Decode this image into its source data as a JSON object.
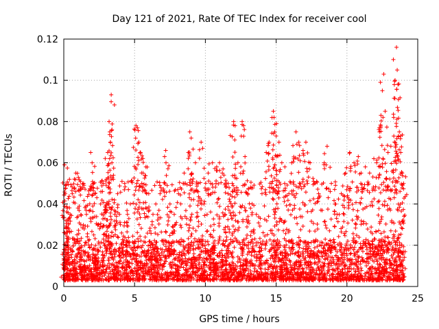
{
  "chart_data": {
    "type": "scatter",
    "title": "Day 121 of 2021, Rate Of TEC Index for receiver cool",
    "xlabel": "GPS time / hours",
    "ylabel": "ROTI / TECUs",
    "xlim": [
      0,
      25
    ],
    "ylim": [
      0,
      0.12
    ],
    "xticks": [
      0,
      5,
      10,
      15,
      20,
      25
    ],
    "yticks": [
      0,
      0.02,
      0.04,
      0.06,
      0.08,
      0.1,
      0.12
    ],
    "xtick_labels": [
      "0",
      "5",
      "10",
      "15",
      "20",
      "25"
    ],
    "ytick_labels": [
      "0",
      "0.02",
      "0.04",
      "0.06",
      "0.08",
      "0.1",
      "0.12"
    ],
    "grid": true,
    "marker": "+",
    "series": [
      {
        "name": "ROTI",
        "color": "#ff0000",
        "base_range": [
          0.003,
          0.025
        ],
        "points": [
          [
            0.05,
            0.059
          ],
          [
            0.1,
            0.045
          ],
          [
            0.15,
            0.032
          ],
          [
            0.25,
            0.038
          ],
          [
            0.4,
            0.052
          ],
          [
            0.45,
            0.035
          ],
          [
            0.6,
            0.045
          ],
          [
            0.85,
            0.055
          ],
          [
            1.0,
            0.038
          ],
          [
            1.2,
            0.03
          ],
          [
            1.4,
            0.05
          ],
          [
            1.6,
            0.035
          ],
          [
            1.9,
            0.065
          ],
          [
            2.0,
            0.06
          ],
          [
            2.1,
            0.05
          ],
          [
            2.2,
            0.045
          ],
          [
            2.4,
            0.03
          ],
          [
            2.6,
            0.04
          ],
          [
            2.8,
            0.05
          ],
          [
            3.0,
            0.052
          ],
          [
            3.1,
            0.065
          ],
          [
            3.2,
            0.08
          ],
          [
            3.25,
            0.075
          ],
          [
            3.3,
            0.07
          ],
          [
            3.35,
            0.093
          ],
          [
            3.4,
            0.06
          ],
          [
            3.6,
            0.035
          ],
          [
            3.8,
            0.045
          ],
          [
            4.0,
            0.03
          ],
          [
            4.3,
            0.05
          ],
          [
            4.5,
            0.035
          ],
          [
            4.7,
            0.04
          ],
          [
            5.1,
            0.078
          ],
          [
            5.2,
            0.077
          ],
          [
            5.3,
            0.07
          ],
          [
            5.4,
            0.065
          ],
          [
            5.6,
            0.055
          ],
          [
            5.8,
            0.058
          ],
          [
            6.0,
            0.045
          ],
          [
            6.3,
            0.035
          ],
          [
            6.5,
            0.04
          ],
          [
            6.8,
            0.045
          ],
          [
            7.2,
            0.066
          ],
          [
            7.5,
            0.04
          ],
          [
            7.8,
            0.035
          ],
          [
            8.1,
            0.045
          ],
          [
            8.5,
            0.055
          ],
          [
            8.8,
            0.065
          ],
          [
            8.9,
            0.075
          ],
          [
            9.0,
            0.072
          ],
          [
            9.3,
            0.06
          ],
          [
            9.5,
            0.05
          ],
          [
            9.7,
            0.07
          ],
          [
            9.9,
            0.04
          ],
          [
            10.2,
            0.055
          ],
          [
            10.5,
            0.06
          ],
          [
            10.8,
            0.058
          ],
          [
            11.0,
            0.06
          ],
          [
            11.2,
            0.055
          ],
          [
            11.5,
            0.05
          ],
          [
            11.6,
            0.045
          ],
          [
            11.9,
            0.05
          ],
          [
            12.0,
            0.08
          ],
          [
            12.1,
            0.078
          ],
          [
            12.3,
            0.06
          ],
          [
            12.6,
            0.08
          ],
          [
            12.7,
            0.078
          ],
          [
            12.8,
            0.063
          ],
          [
            13.0,
            0.045
          ],
          [
            13.3,
            0.04
          ],
          [
            13.6,
            0.035
          ],
          [
            14.0,
            0.045
          ],
          [
            14.3,
            0.065
          ],
          [
            14.5,
            0.07
          ],
          [
            14.8,
            0.085
          ],
          [
            14.85,
            0.082
          ],
          [
            14.9,
            0.075
          ],
          [
            15.0,
            0.073
          ],
          [
            15.2,
            0.07
          ],
          [
            15.4,
            0.06
          ],
          [
            15.6,
            0.05
          ],
          [
            15.9,
            0.045
          ],
          [
            16.1,
            0.06
          ],
          [
            16.4,
            0.075
          ],
          [
            16.6,
            0.07
          ],
          [
            16.9,
            0.066
          ],
          [
            17.1,
            0.07
          ],
          [
            17.4,
            0.06
          ],
          [
            17.7,
            0.05
          ],
          [
            18.0,
            0.045
          ],
          [
            18.4,
            0.06
          ],
          [
            18.6,
            0.068
          ],
          [
            18.9,
            0.05
          ],
          [
            19.2,
            0.04
          ],
          [
            19.6,
            0.045
          ],
          [
            19.9,
            0.055
          ],
          [
            20.2,
            0.065
          ],
          [
            20.5,
            0.06
          ],
          [
            20.8,
            0.063
          ],
          [
            21.0,
            0.055
          ],
          [
            21.3,
            0.058
          ],
          [
            21.6,
            0.055
          ],
          [
            21.9,
            0.062
          ],
          [
            22.1,
            0.06
          ],
          [
            22.3,
            0.075
          ],
          [
            22.4,
            0.083
          ],
          [
            22.5,
            0.095
          ],
          [
            22.6,
            0.103
          ],
          [
            22.7,
            0.085
          ],
          [
            22.9,
            0.065
          ],
          [
            23.1,
            0.068
          ],
          [
            23.3,
            0.082
          ],
          [
            23.4,
            0.1
          ],
          [
            23.5,
            0.116
          ],
          [
            23.55,
            0.105
          ],
          [
            23.6,
            0.098
          ],
          [
            23.7,
            0.075
          ],
          [
            23.8,
            0.065
          ],
          [
            23.9,
            0.055
          ],
          [
            24.0,
            0.05
          ]
        ]
      }
    ]
  }
}
